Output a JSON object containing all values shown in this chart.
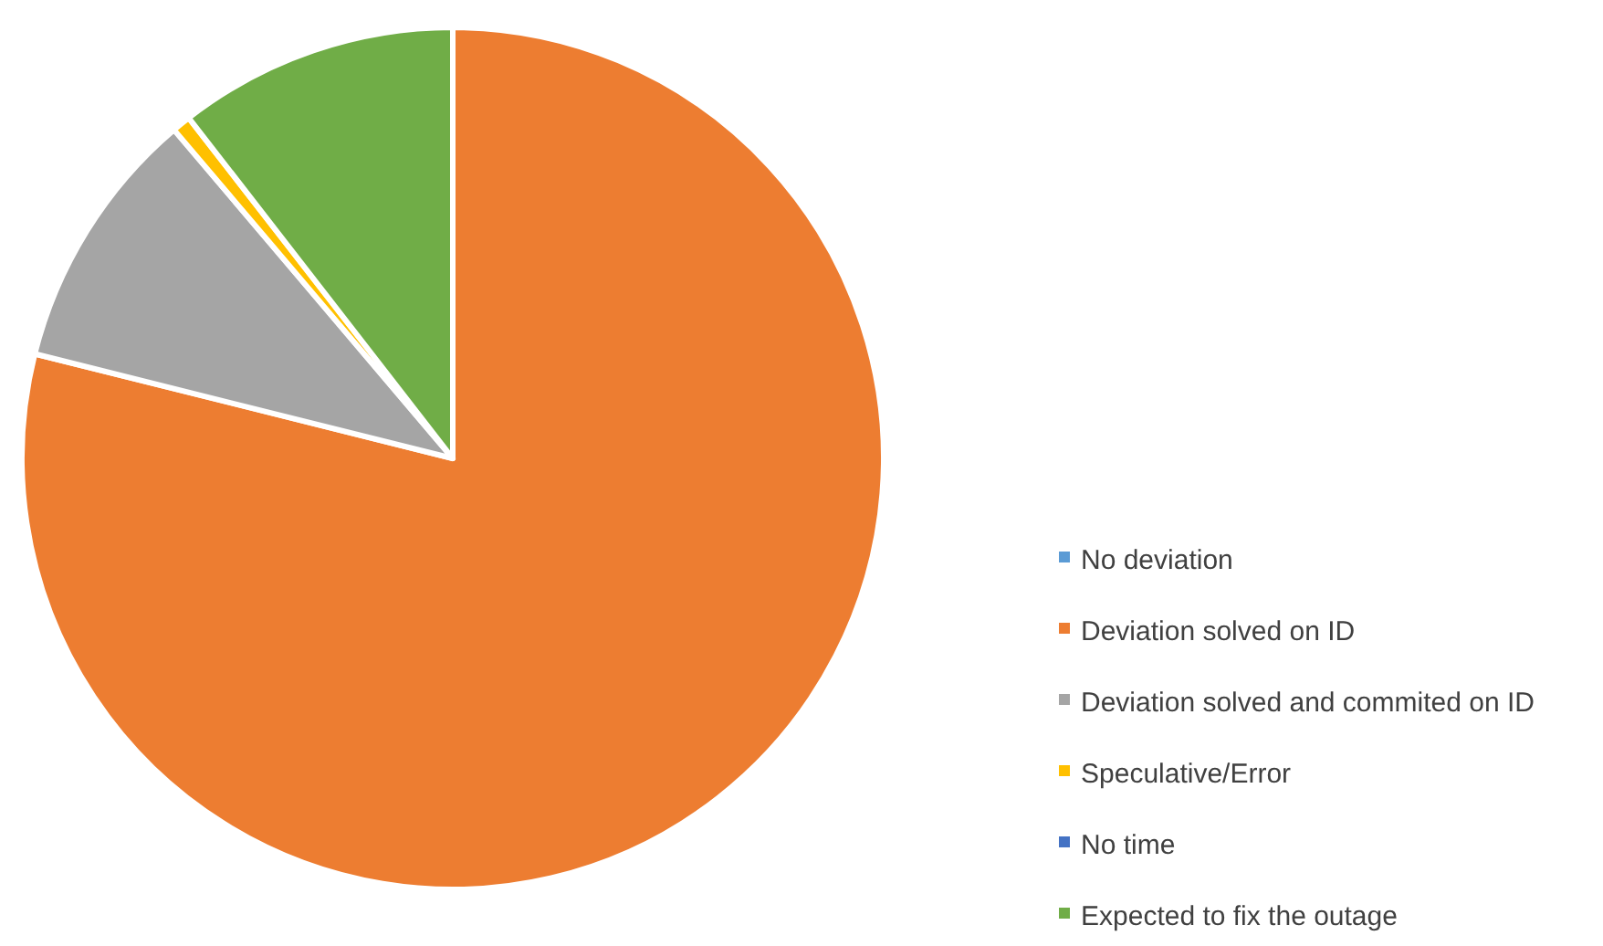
{
  "chart_data": {
    "type": "pie",
    "categories": [
      "No deviation",
      "Deviation solved on ID",
      "Deviation solved and commited on ID",
      "Speculative/Error",
      "No time",
      "Expected to fix the outage"
    ],
    "values": [
      0,
      78.9,
      9.9,
      0.7,
      0,
      10.5
    ],
    "colors": [
      "#5b9bd5",
      "#ed7d31",
      "#a5a5a5",
      "#ffc000",
      "#4472c4",
      "#70ad47"
    ],
    "legend": "right"
  }
}
